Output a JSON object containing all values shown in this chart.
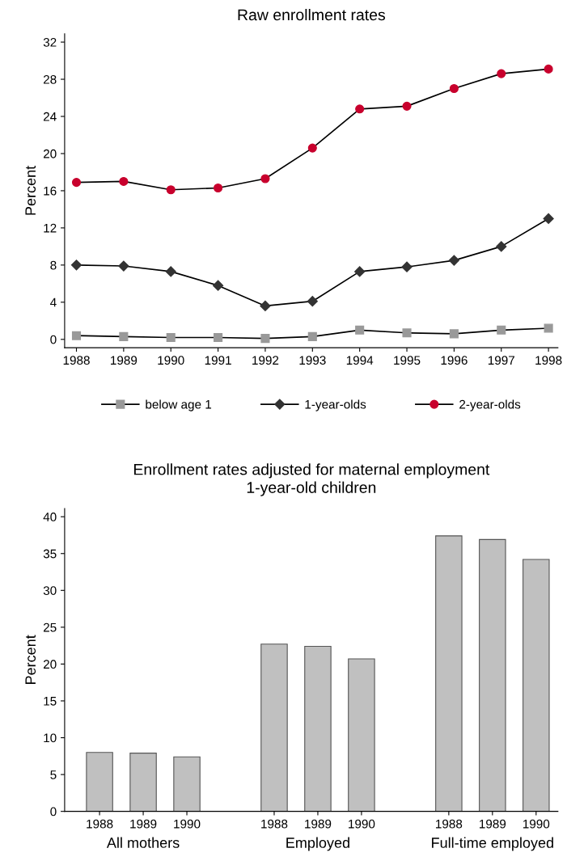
{
  "chart_data": [
    {
      "type": "line",
      "title": "Raw enrollment rates",
      "ylabel": "Percent",
      "x": [
        1988,
        1989,
        1990,
        1991,
        1992,
        1993,
        1994,
        1995,
        1996,
        1997,
        1998
      ],
      "xlim": [
        1987.75,
        1998.2
      ],
      "xticks": [
        1988,
        1989,
        1990,
        1991,
        1992,
        1993,
        1994,
        1995,
        1996,
        1997,
        1998
      ],
      "ylim": [
        -0.9,
        32.9
      ],
      "yticks": [
        0,
        4,
        8,
        12,
        16,
        20,
        24,
        28,
        32
      ],
      "grid": false,
      "legend": "bottom",
      "line_style": "solid",
      "series": [
        {
          "name": "below age 1",
          "color": "#999999",
          "marker": "square",
          "values": [
            0.4,
            0.3,
            0.2,
            0.2,
            0.1,
            0.3,
            1.0,
            0.7,
            0.6,
            1.0,
            1.2
          ]
        },
        {
          "name": "1-year-olds",
          "color": "#333333",
          "marker": "diamond",
          "values": [
            8.0,
            7.9,
            7.3,
            5.8,
            3.6,
            4.1,
            7.3,
            7.8,
            8.5,
            10.0,
            13.0
          ]
        },
        {
          "name": "2-year-olds",
          "color": "#c8002d",
          "marker": "circle",
          "values": [
            16.9,
            17.0,
            16.1,
            16.3,
            17.3,
            20.6,
            24.8,
            25.1,
            27.0,
            28.6,
            29.1
          ]
        }
      ]
    },
    {
      "type": "bar",
      "title": "Enrollment rates adjusted for maternal employment",
      "subtitle": "1-year-old children",
      "ylabel": "Percent",
      "categories": [
        "1988",
        "1989",
        "1990",
        null,
        "1988",
        "1989",
        "1990",
        null,
        "1988",
        "1989",
        "1990"
      ],
      "values": [
        8.0,
        7.9,
        7.4,
        null,
        22.7,
        22.4,
        20.7,
        null,
        37.4,
        36.9,
        34.2
      ],
      "color": "#c0c0c0",
      "ylim": [
        0,
        41.1
      ],
      "yticks": [
        0,
        5,
        10,
        15,
        20,
        25,
        30,
        35,
        40
      ],
      "grid": false,
      "annotations": [
        "All mothers",
        "Employed",
        "Full-time employed"
      ]
    }
  ]
}
